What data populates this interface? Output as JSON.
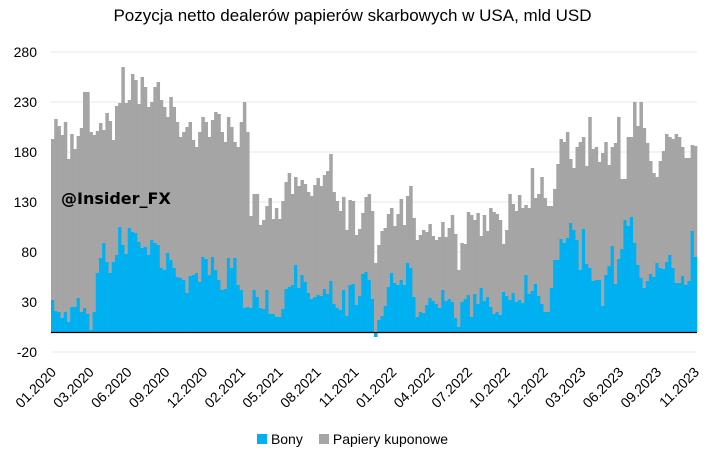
{
  "chart_data": {
    "type": "bar",
    "stacked": true,
    "title": "Pozycja netto dealerów papierów skarbowych w USA, mld USD",
    "watermark": "@Insider_FX",
    "xlabel": "",
    "ylabel": "",
    "ylim": [
      -20,
      280
    ],
    "yticks": [
      -20,
      30,
      80,
      130,
      180,
      230,
      280
    ],
    "x_tick_labels": [
      "01.2020",
      "03.2020",
      "06.2020",
      "09.2020",
      "12.2020",
      "02.2021",
      "05.2021",
      "08.2021",
      "11.2021",
      "01.2022",
      "04.2022",
      "07.2022",
      "10.2022",
      "12.2022",
      "03.2023",
      "06.2023",
      "09.2023",
      "11.2023"
    ],
    "grid": true,
    "legend_position": "bottom",
    "frequency": "weekly",
    "colors": {
      "Bony": "#00b0f0",
      "Papiery kuponowe": "#a5a5a5",
      "grid": "#e8e8e8",
      "axis": "#000000"
    },
    "series": [
      {
        "name": "Bony",
        "values": [
          32,
          21,
          20,
          14,
          20,
          10,
          25,
          25,
          34,
          20,
          24,
          18,
          2,
          20,
          59,
          74,
          89,
          70,
          59,
          70,
          77,
          105,
          87,
          78,
          104,
          100,
          99,
          90,
          84,
          85,
          77,
          92,
          89,
          87,
          64,
          62,
          79,
          72,
          64,
          55,
          54,
          52,
          39,
          56,
          57,
          59,
          50,
          75,
          73,
          57,
          75,
          62,
          52,
          42,
          43,
          74,
          64,
          74,
          47,
          42,
          24,
          25,
          24,
          42,
          35,
          24,
          23,
          42,
          18,
          18,
          15,
          15,
          23,
          43,
          45,
          47,
          67,
          44,
          57,
          50,
          39,
          33,
          35,
          37,
          36,
          43,
          38,
          51,
          28,
          24,
          22,
          42,
          16,
          47,
          48,
          27,
          36,
          58,
          60,
          52,
          33,
          -5,
          12,
          16,
          26,
          45,
          59,
          49,
          47,
          52,
          47,
          69,
          64,
          35,
          15,
          20,
          19,
          27,
          34,
          31,
          28,
          24,
          42,
          31,
          33,
          30,
          14,
          5,
          30,
          33,
          37,
          15,
          38,
          28,
          44,
          31,
          35,
          25,
          18,
          20,
          17,
          40,
          36,
          32,
          39,
          30,
          32,
          29,
          57,
          38,
          41,
          48,
          36,
          28,
          20,
          20,
          44,
          72,
          72,
          93,
          89,
          94,
          109,
          102,
          92,
          62,
          103,
          68,
          64,
          51,
          52,
          52,
          26,
          57,
          66,
          86,
          48,
          73,
          83,
          112,
          106,
          115,
          89,
          67,
          54,
          44,
          51,
          58,
          55,
          69,
          64,
          63,
          70,
          77,
          64,
          49,
          49,
          56,
          47,
          51,
          101,
          75
        ]
      },
      {
        "name": "Papiery kuponowe",
        "stack_top_values": [
          193,
          213,
          206,
          197,
          210,
          173,
          198,
          183,
          196,
          204,
          240,
          240,
          200,
          197,
          201,
          209,
          202,
          219,
          211,
          192,
          226,
          229,
          265,
          229,
          232,
          258,
          252,
          228,
          255,
          245,
          225,
          230,
          245,
          250,
          232,
          225,
          215,
          235,
          225,
          210,
          195,
          200,
          205,
          210,
          192,
          185,
          200,
          215,
          210,
          195,
          212,
          220,
          218,
          200,
          190,
          215,
          205,
          190,
          185,
          210,
          230,
          200,
          116,
          138,
          138,
          107,
          112,
          126,
          134,
          113,
          124,
          113,
          131,
          150,
          159,
          138,
          155,
          146,
          152,
          148,
          140,
          136,
          147,
          154,
          146,
          157,
          161,
          178,
          140,
          131,
          121,
          135,
          102,
          132,
          131,
          97,
          103,
          119,
          135,
          138,
          121,
          69,
          87,
          101,
          104,
          118,
          124,
          106,
          118,
          133,
          107,
          136,
          146,
          114,
          92,
          97,
          102,
          100,
          108,
          96,
          92,
          95,
          110,
          95,
          104,
          117,
          98,
          62,
          89,
          88,
          120,
          117,
          112,
          119,
          96,
          117,
          101,
          124,
          120,
          118,
          112,
          88,
          102,
          138,
          128,
          121,
          137,
          124,
          127,
          124,
          164,
          134,
          138,
          155,
          134,
          126,
          126,
          143,
          168,
          193,
          190,
          200,
          173,
          164,
          185,
          190,
          195,
          166,
          215,
          183,
          185,
          170,
          179,
          190,
          167,
          185,
          189,
          215,
          153,
          153,
          195,
          195,
          230,
          206,
          230,
          204,
          189,
          171,
          159,
          155,
          171,
          181,
          198,
          195,
          193,
          198,
          195,
          185,
          174,
          174,
          187,
          186,
          171,
          229,
          217
        ]
      }
    ]
  }
}
